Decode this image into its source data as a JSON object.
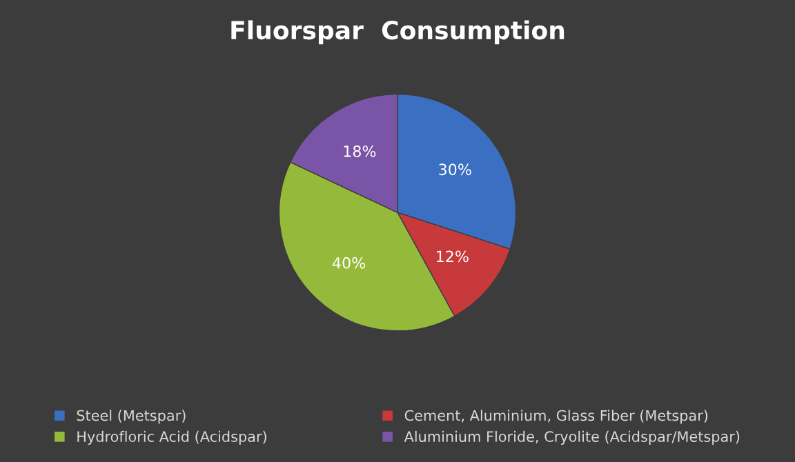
{
  "chart_data": {
    "type": "pie",
    "title": "Fluorspar  Consumption",
    "categories": [
      "Steel (Metspar)",
      "Cement, Aluminium, Glass Fiber (Metspar)",
      "Hydrofloric Acid (Acidspar)",
      "Aluminium Floride, Cryolite (Acidspar/Metspar)"
    ],
    "values": [
      30,
      12,
      40,
      18
    ],
    "value_labels": [
      "30%",
      "12%",
      "40%",
      "18%"
    ],
    "colors": [
      "#3b6fc2",
      "#c7393b",
      "#95b93a",
      "#7a54a6"
    ],
    "legend": "bottom"
  }
}
